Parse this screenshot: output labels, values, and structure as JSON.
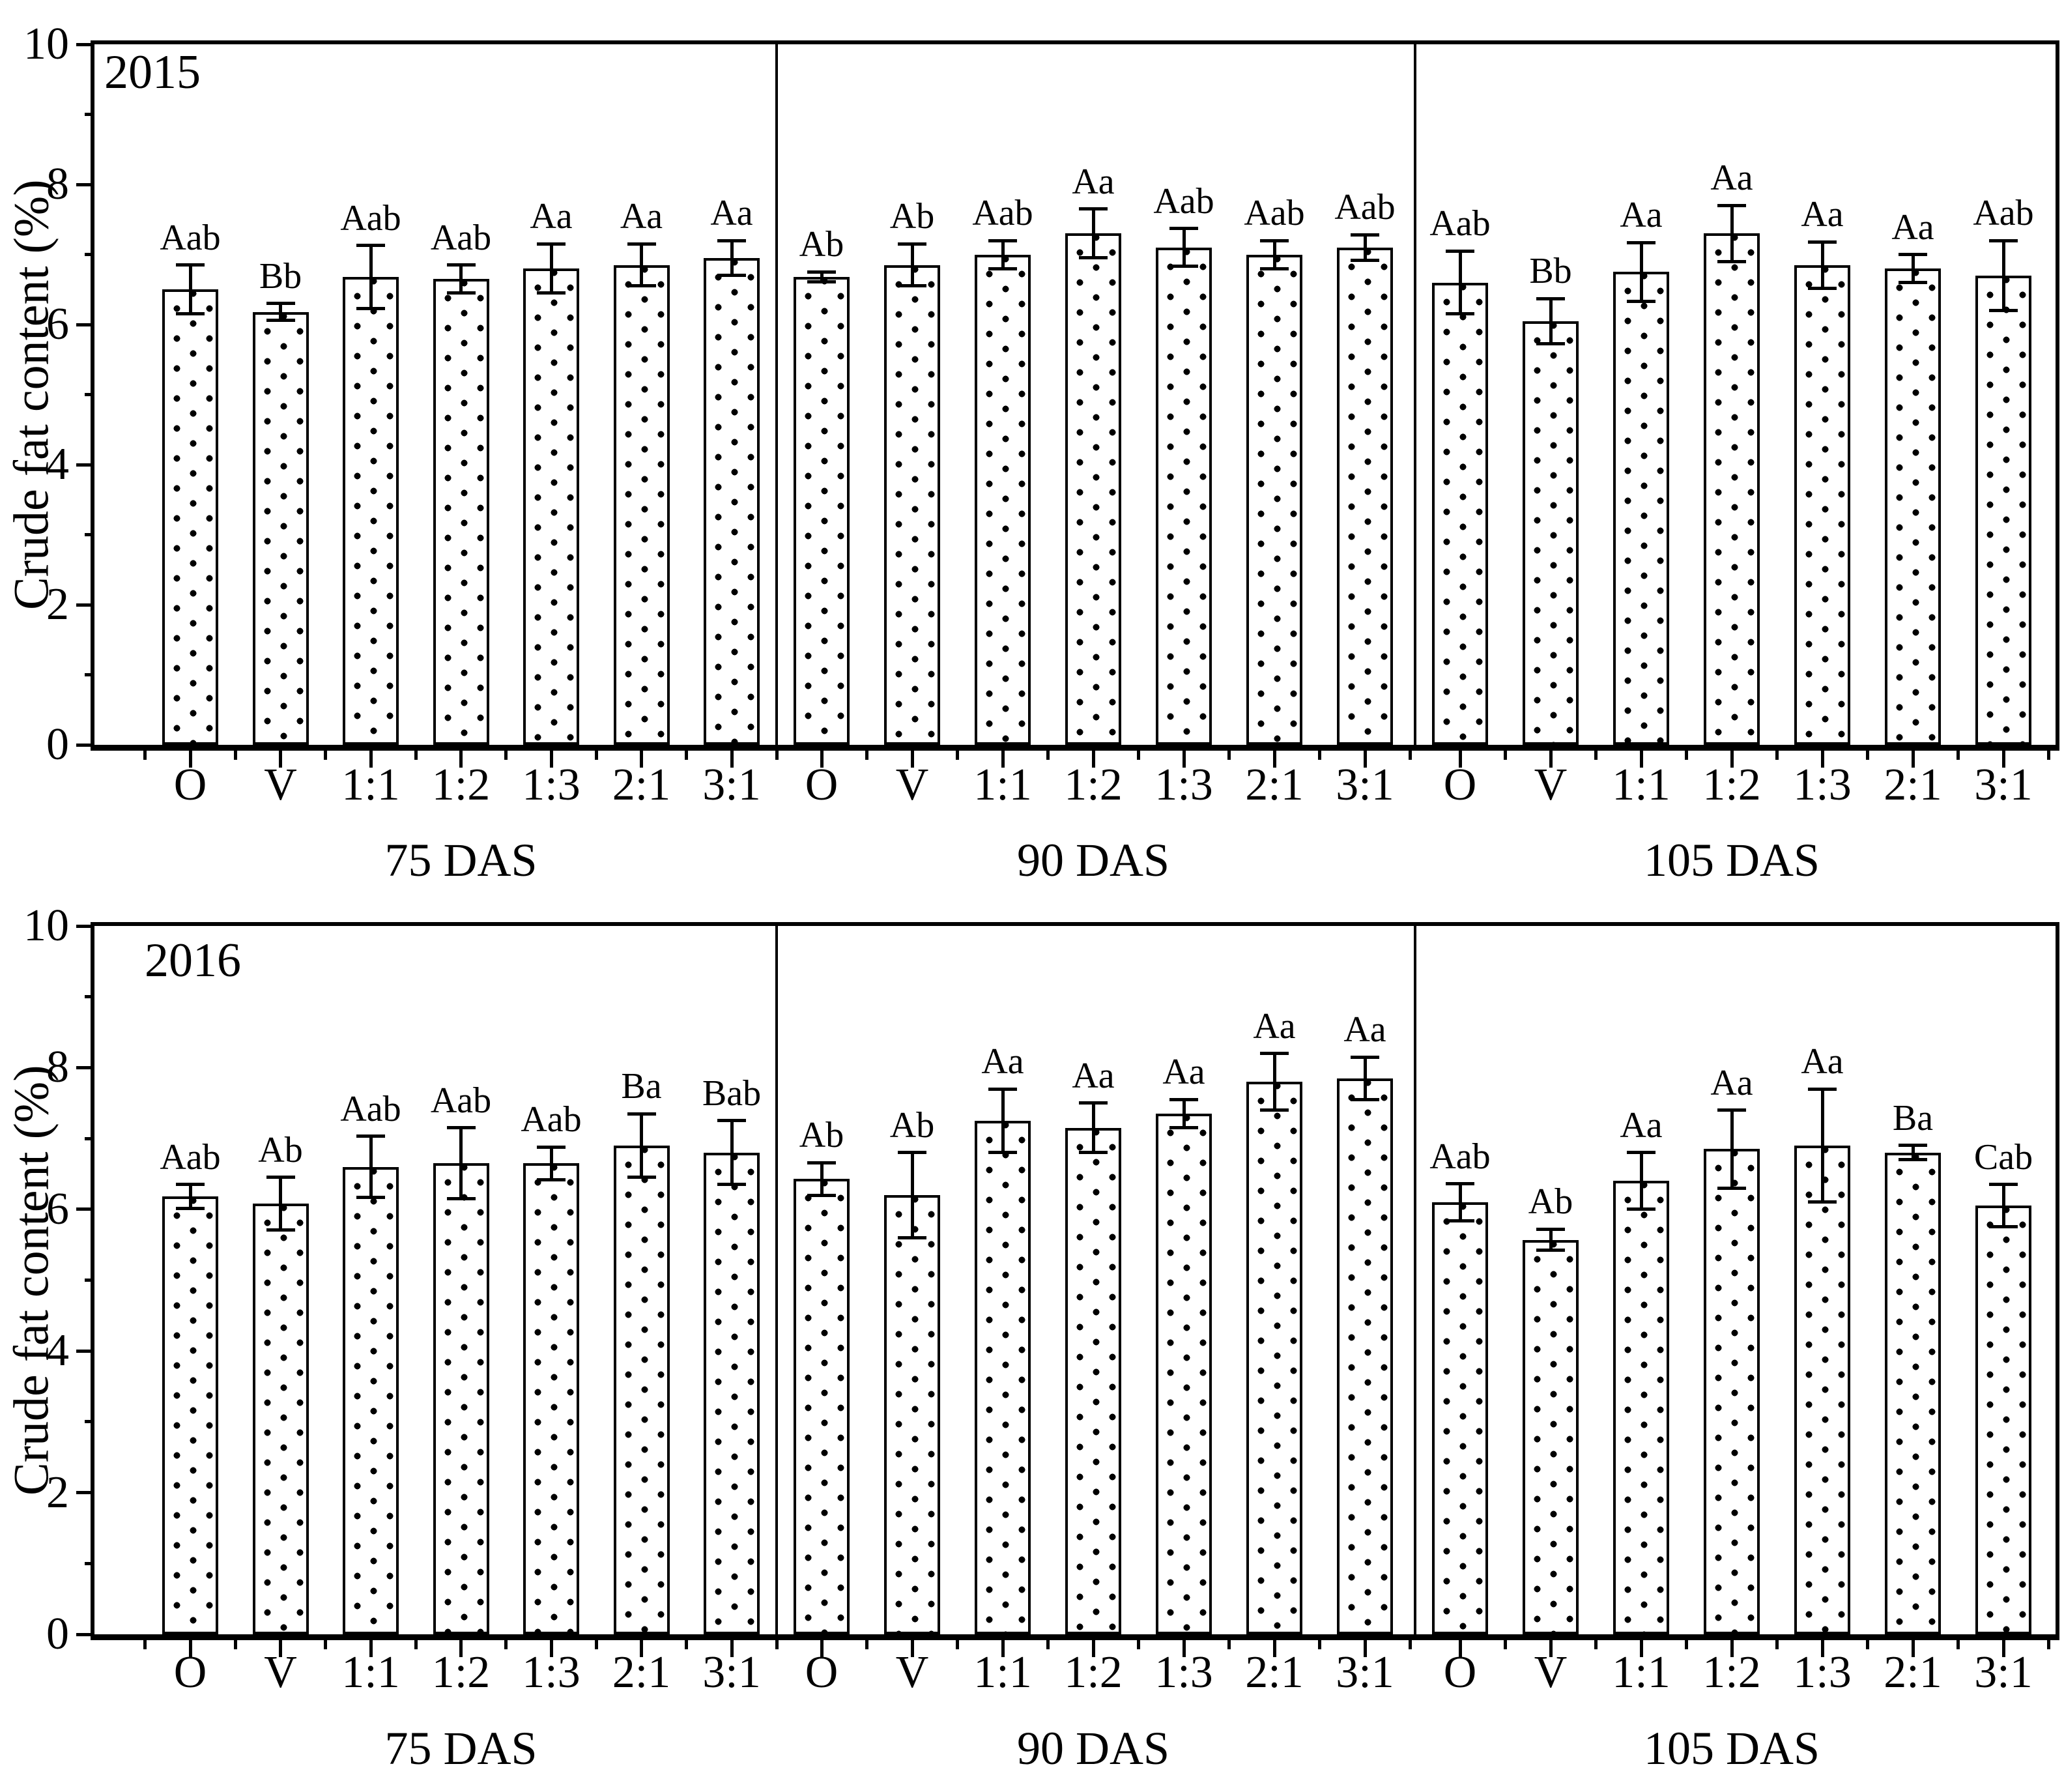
{
  "colors": {
    "foreground": "#000000",
    "background": "#ffffff"
  },
  "chart_data": [
    {
      "type": "bar",
      "panel_label": "2015",
      "ylabel": "Crude fat content (%)",
      "ylim": [
        0,
        10
      ],
      "yticks": [
        "0",
        "2",
        "4",
        "6",
        "8",
        "10"
      ],
      "categories": [
        "O",
        "V",
        "1:1",
        "1:2",
        "1:3",
        "2:1",
        "3:1"
      ],
      "bar_fill": "white-with-black-dot-pattern",
      "error_bars": true,
      "legend": "none",
      "grid": "off",
      "groups": [
        {
          "label": "75 DAS",
          "values": [
            6.5,
            6.18,
            6.68,
            6.65,
            6.8,
            6.85,
            6.95
          ],
          "errors": [
            0.35,
            0.12,
            0.45,
            0.2,
            0.35,
            0.3,
            0.25
          ],
          "letters": [
            "Aab",
            "Bb",
            "Aab",
            "Aab",
            "Aa",
            "Aa",
            "Aa"
          ]
        },
        {
          "label": "90 DAS",
          "values": [
            6.68,
            6.85,
            7.0,
            7.3,
            7.1,
            7.0,
            7.1
          ],
          "errors": [
            0.07,
            0.3,
            0.2,
            0.35,
            0.27,
            0.2,
            0.18
          ],
          "letters": [
            "Ab",
            "Ab",
            "Aab",
            "Aa",
            "Aab",
            "Aab",
            "Aab"
          ]
        },
        {
          "label": "105 DAS",
          "values": [
            6.6,
            6.05,
            6.75,
            7.3,
            6.85,
            6.8,
            6.7
          ],
          "errors": [
            0.45,
            0.32,
            0.42,
            0.4,
            0.33,
            0.2,
            0.5
          ],
          "letters": [
            "Aab",
            "Bb",
            "Aa",
            "Aa",
            "Aa",
            "Aa",
            "Aab"
          ]
        }
      ]
    },
    {
      "type": "bar",
      "panel_label": "2016",
      "ylabel": "Crude fat content (%)",
      "ylim": [
        0,
        10
      ],
      "yticks": [
        "0",
        "2",
        "4",
        "6",
        "8",
        "10"
      ],
      "categories": [
        "O",
        "V",
        "1:1",
        "1:2",
        "1:3",
        "2:1",
        "3:1"
      ],
      "bar_fill": "white-with-black-dot-pattern",
      "error_bars": true,
      "legend": "none",
      "grid": "off",
      "groups": [
        {
          "label": "75 DAS",
          "values": [
            6.18,
            6.08,
            6.6,
            6.65,
            6.65,
            6.9,
            6.8
          ],
          "errors": [
            0.17,
            0.37,
            0.43,
            0.5,
            0.23,
            0.45,
            0.45
          ],
          "letters": [
            "Aab",
            "Ab",
            "Aab",
            "Aab",
            "Aab",
            "Ba",
            "Bab"
          ]
        },
        {
          "label": "90 DAS",
          "values": [
            6.43,
            6.2,
            7.25,
            7.15,
            7.35,
            7.8,
            7.85
          ],
          "errors": [
            0.23,
            0.6,
            0.45,
            0.35,
            0.2,
            0.4,
            0.3
          ],
          "letters": [
            "Ab",
            "Ab",
            "Aa",
            "Aa",
            "Aa",
            "Aa",
            "Aa"
          ]
        },
        {
          "label": "105 DAS",
          "values": [
            6.1,
            5.57,
            6.4,
            6.85,
            6.9,
            6.8,
            6.05
          ],
          "errors": [
            0.26,
            0.15,
            0.4,
            0.55,
            0.8,
            0.1,
            0.3
          ],
          "letters": [
            "Aab",
            "Ab",
            "Aa",
            "Aa",
            "Aa",
            "Ba",
            "Cab"
          ]
        }
      ]
    }
  ]
}
